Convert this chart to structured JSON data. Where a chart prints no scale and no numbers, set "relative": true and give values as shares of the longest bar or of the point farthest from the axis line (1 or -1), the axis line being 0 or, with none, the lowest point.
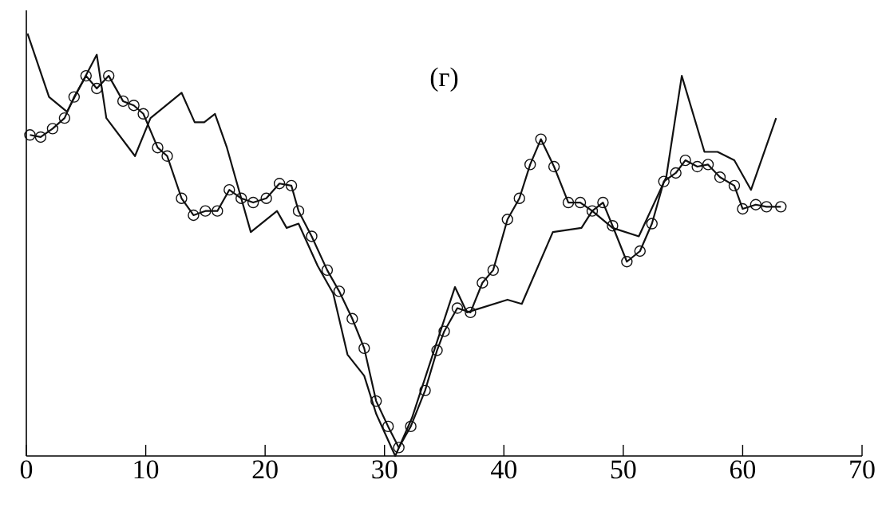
{
  "chart_data": {
    "type": "line",
    "title": "(г)",
    "relative": true,
    "xlim": [
      0,
      70
    ],
    "xticks": [
      0,
      10,
      20,
      30,
      40,
      50,
      60,
      70
    ],
    "series": [
      {
        "color": "#111111",
        "marker": "none",
        "x": [
          0.1,
          1.9,
          3.4,
          5.9,
          6.7,
          9.1,
          10.4,
          13.0,
          14.1,
          14.9,
          15.8,
          16.8,
          17.8,
          18.8,
          21.0,
          21.8,
          22.8,
          24.4,
          25.7,
          26.9,
          28.3,
          29.3,
          30.9,
          32.3,
          35.9,
          36.9,
          40.3,
          41.5,
          44.1,
          46.5,
          47.4,
          49.1,
          51.3,
          53.6,
          54.9,
          56.8,
          57.9,
          59.3,
          60.7,
          62.8
        ],
        "values": [
          1.0,
          0.85,
          0.815,
          0.95,
          0.8,
          0.71,
          0.8,
          0.86,
          0.79,
          0.79,
          0.81,
          0.73,
          0.63,
          0.53,
          0.58,
          0.54,
          0.55,
          0.45,
          0.385,
          0.24,
          0.19,
          0.1,
          0.0,
          0.09,
          0.4,
          0.34,
          0.37,
          0.36,
          0.53,
          0.54,
          0.58,
          0.54,
          0.52,
          0.66,
          0.9,
          0.72,
          0.72,
          0.7,
          0.63,
          0.8
        ]
      },
      {
        "color": "#111111",
        "marker": "circle",
        "x": [
          0.3,
          1.2,
          2.2,
          3.2,
          4.0,
          5.0,
          5.9,
          6.9,
          8.1,
          9.0,
          9.8,
          11.0,
          11.8,
          13.0,
          14.0,
          15.0,
          16.0,
          17.0,
          18.0,
          19.0,
          20.1,
          21.2,
          22.2,
          22.8,
          23.9,
          25.2,
          26.2,
          27.3,
          28.3,
          29.3,
          30.3,
          31.2,
          32.2,
          33.4,
          34.4,
          35.0,
          36.1,
          37.2,
          38.2,
          39.1,
          40.3,
          41.3,
          42.2,
          43.1,
          44.2,
          45.4,
          46.4,
          47.4,
          48.3,
          49.1,
          50.3,
          51.4,
          52.4,
          53.4,
          54.4,
          55.2,
          56.2,
          57.1,
          58.1,
          59.3,
          60.0,
          61.1,
          62.0,
          63.2
        ],
        "values": [
          0.76,
          0.755,
          0.775,
          0.8,
          0.85,
          0.9,
          0.87,
          0.9,
          0.84,
          0.83,
          0.81,
          0.73,
          0.71,
          0.61,
          0.57,
          0.58,
          0.58,
          0.63,
          0.61,
          0.6,
          0.61,
          0.645,
          0.64,
          0.58,
          0.52,
          0.44,
          0.39,
          0.325,
          0.255,
          0.13,
          0.07,
          0.02,
          0.07,
          0.155,
          0.25,
          0.295,
          0.35,
          0.34,
          0.41,
          0.44,
          0.56,
          0.61,
          0.69,
          0.75,
          0.685,
          0.6,
          0.6,
          0.58,
          0.6,
          0.545,
          0.46,
          0.485,
          0.55,
          0.65,
          0.67,
          0.7,
          0.685,
          0.69,
          0.66,
          0.64,
          0.585,
          0.595,
          0.59,
          0.59
        ]
      }
    ]
  }
}
